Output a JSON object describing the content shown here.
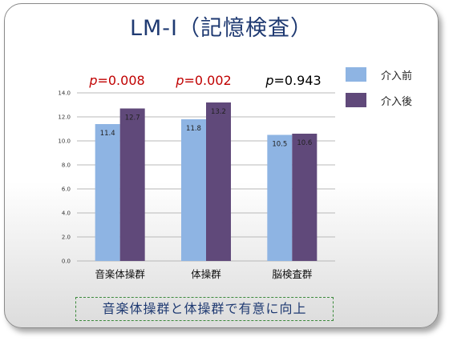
{
  "title": "LM-I（記憶検査）",
  "p_values": [
    {
      "prefix": "p",
      "value": "=0.008",
      "color": "#c00000"
    },
    {
      "prefix": "p",
      "value": "=0.002",
      "color": "#c00000"
    },
    {
      "prefix": "p",
      "value": "=0.943",
      "color": "#000000"
    }
  ],
  "legend": [
    {
      "label": "介入前",
      "color": "#8eb4e3"
    },
    {
      "label": "介入後",
      "color": "#60497a"
    }
  ],
  "conclusion": "音楽体操群と体操群で有意に向上",
  "chart_data": {
    "type": "bar",
    "categories": [
      "音楽体操群",
      "体操群",
      "脳検査群"
    ],
    "series": [
      {
        "name": "介入前",
        "values": [
          11.4,
          11.8,
          10.5
        ],
        "color": "#8eb4e3"
      },
      {
        "name": "介入後",
        "values": [
          12.7,
          13.2,
          10.6
        ],
        "color": "#60497a"
      }
    ],
    "ylim": [
      0,
      14
    ],
    "yticks": [
      "0.0",
      "2.0",
      "4.0",
      "6.0",
      "8.0",
      "10.0",
      "12.0",
      "14.0"
    ],
    "grid": true,
    "legend_position": "right"
  }
}
